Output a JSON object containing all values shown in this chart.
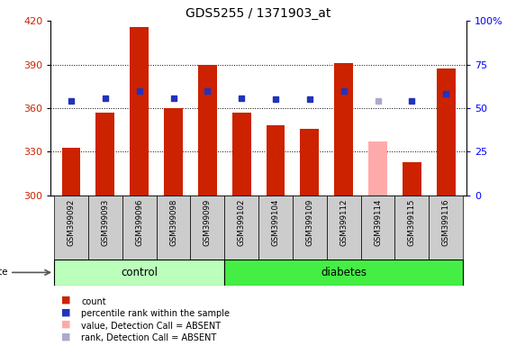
{
  "title": "GDS5255 / 1371903_at",
  "samples": [
    "GSM399092",
    "GSM399093",
    "GSM399096",
    "GSM399098",
    "GSM399099",
    "GSM399102",
    "GSM399104",
    "GSM399109",
    "GSM399112",
    "GSM399114",
    "GSM399115",
    "GSM399116"
  ],
  "counts": [
    333,
    357,
    416,
    360,
    390,
    357,
    348,
    346,
    391,
    337,
    323,
    387
  ],
  "percentile_ranks": [
    365,
    367,
    372,
    367,
    372,
    367,
    366,
    366,
    372,
    365,
    365,
    370
  ],
  "detection_call_absent": [
    false,
    false,
    false,
    false,
    false,
    false,
    false,
    false,
    false,
    true,
    false,
    false
  ],
  "control_count": 5,
  "diabetes_count": 7,
  "ylim_left": [
    300,
    420
  ],
  "ylim_right": [
    0,
    100
  ],
  "yticks_left": [
    300,
    330,
    360,
    390,
    420
  ],
  "yticks_right": [
    0,
    25,
    50,
    75,
    100
  ],
  "ytick_labels_right": [
    "0",
    "25",
    "50",
    "75",
    "100%"
  ],
  "bar_color_normal": "#cc2200",
  "bar_color_absent": "#ffaaaa",
  "dot_color_normal": "#2233bb",
  "dot_color_absent": "#aaaacc",
  "control_bg": "#bbffbb",
  "diabetes_bg": "#44ee44",
  "label_bg": "#cccccc",
  "grid_lines": [
    330,
    360,
    390
  ],
  "legend_items": [
    {
      "label": "count",
      "color": "#cc2200"
    },
    {
      "label": "percentile rank within the sample",
      "color": "#2233bb"
    },
    {
      "label": "value, Detection Call = ABSENT",
      "color": "#ffaaaa"
    },
    {
      "label": "rank, Detection Call = ABSENT",
      "color": "#aaaacc"
    }
  ]
}
